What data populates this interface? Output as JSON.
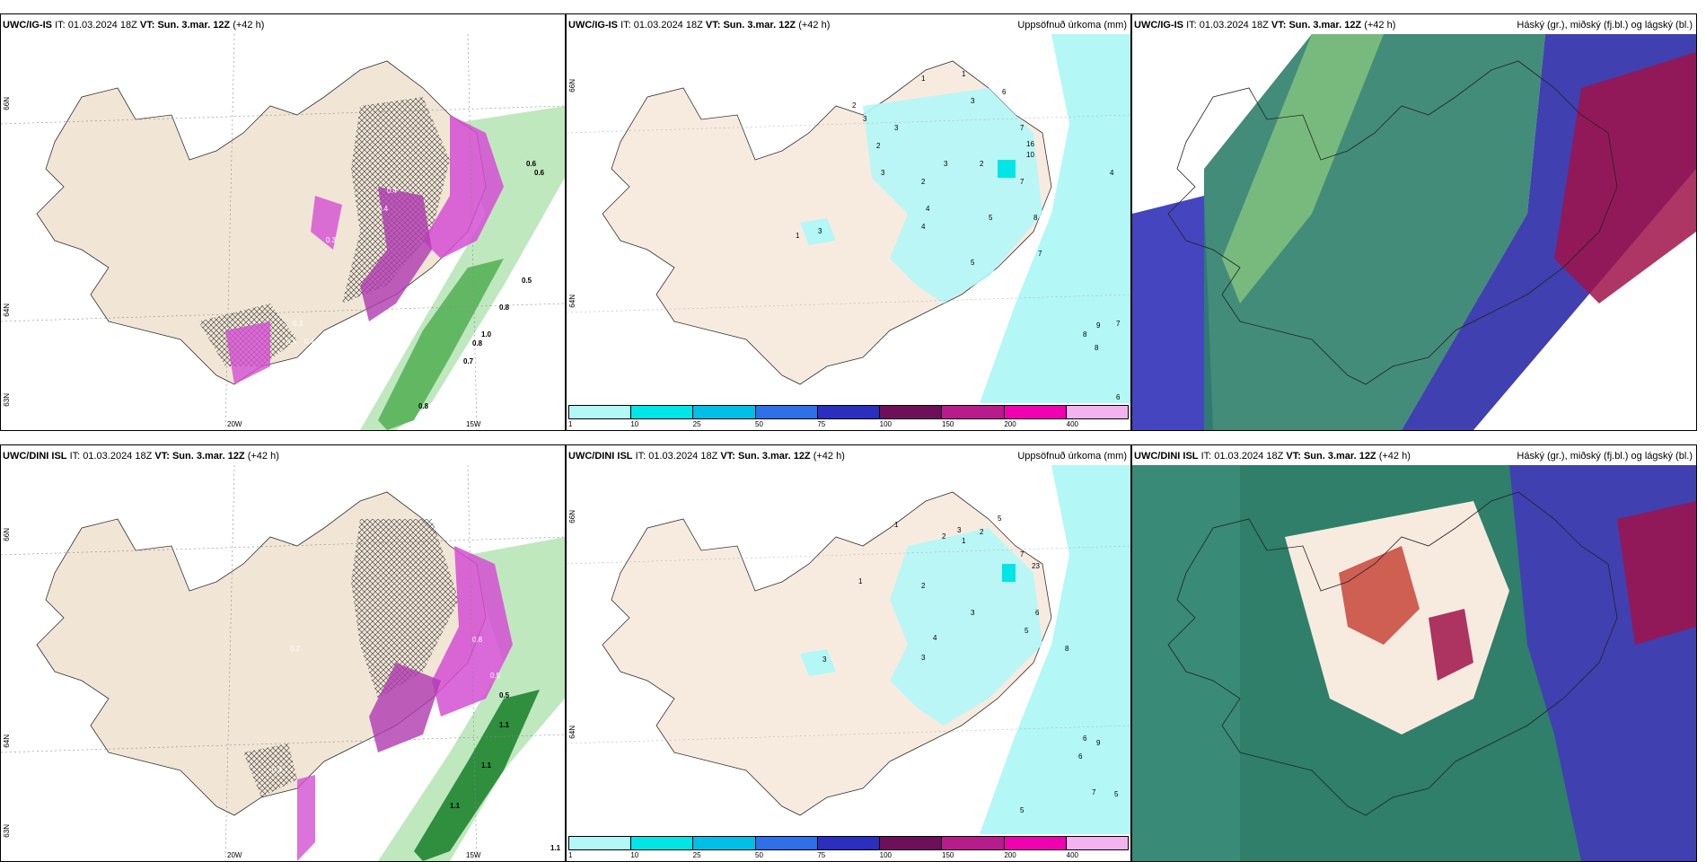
{
  "panels": [
    {
      "model": "UWC/IG-IS",
      "it_label": "IT:",
      "it_value": "01.03.2024 18Z",
      "vt_label": "VT:",
      "vt_value": "Sun. 3.mar. 12Z",
      "lead": "(+42 h)",
      "field_title": "",
      "lat_labels": [
        "66N",
        "64N",
        "63N"
      ],
      "lon_labels": [
        "20W",
        "15W"
      ],
      "values": [
        "0.6",
        "0.6",
        "0.5",
        "0.8",
        "0.7",
        "1.0",
        "0.8",
        "0.8",
        "0.4",
        "0.4",
        "0.3",
        "0.5",
        "0.4",
        "0.3"
      ]
    },
    {
      "model": "UWC/IG-IS",
      "it_label": "IT:",
      "it_value": "01.03.2024 18Z",
      "vt_label": "VT:",
      "vt_value": "Sun. 3.mar. 12Z",
      "lead": "(+42 h)",
      "field_title": "Uppsöfnuð úrkoma (mm)",
      "lat_labels": [
        "66N",
        "64N"
      ],
      "values": [
        "1",
        "1",
        "2",
        "3",
        "3",
        "2",
        "3",
        "6",
        "7",
        "7",
        "16",
        "10",
        "4",
        "4",
        "5",
        "8",
        "7",
        "8",
        "9",
        "7",
        "8",
        "6",
        "5",
        "3",
        "1",
        "2",
        "3",
        "4",
        "3",
        "2"
      ]
    },
    {
      "model": "UWC/IG-IS",
      "it_label": "IT:",
      "it_value": "01.03.2024 18Z",
      "vt_label": "VT:",
      "vt_value": "Sun. 3.mar. 12Z",
      "lead": "(+42 h)",
      "field_title": "Háský (gr.), miðský (fj.bl.) og lágský (bl.)"
    },
    {
      "model": "UWC/DINI ISL",
      "it_label": "IT:",
      "it_value": "01.03.2024 18Z",
      "vt_label": "VT:",
      "vt_value": "Sun. 3.mar. 12Z",
      "lead": "(+42 h)",
      "field_title": "",
      "lat_labels": [
        "66N",
        "64N",
        "63N"
      ],
      "lon_labels": [
        "20W",
        "15W"
      ],
      "values": [
        "0.5",
        "1.1",
        "1.1",
        "1.1",
        "1.1",
        "0.8",
        "0.5",
        "0.4",
        "0.2"
      ]
    },
    {
      "model": "UWC/DINI ISL",
      "it_label": "IT:",
      "it_value": "01.03.2024 18Z",
      "vt_label": "VT:",
      "vt_value": "Sun. 3.mar. 12Z",
      "lead": "(+42 h)",
      "field_title": "Uppsöfnuð úrkoma (mm)",
      "lat_labels": [
        "66N",
        "64N"
      ],
      "values": [
        "1",
        "1",
        "2",
        "2",
        "3",
        "5",
        "7",
        "23",
        "6",
        "5",
        "8",
        "6",
        "9",
        "6",
        "7",
        "5",
        "5",
        "3",
        "2",
        "1",
        "3",
        "4",
        "3"
      ]
    },
    {
      "model": "UWC/DINI ISL",
      "it_label": "IT:",
      "it_value": "01.03.2024 18Z",
      "vt_label": "VT:",
      "vt_value": "Sun. 3.mar. 12Z",
      "lead": "(+42 h)",
      "field_title": "Háský (gr.), miðský (fj.bl.) og lágský (bl.)"
    }
  ],
  "legend": {
    "ticks": [
      "1",
      "10",
      "25",
      "50",
      "75",
      "100",
      "150",
      "200",
      "400"
    ],
    "colors": [
      "#b3f7f7",
      "#00e5e5",
      "#00bfe6",
      "#2f6fe8",
      "#2a2fbf",
      "#6e0f5a",
      "#b81b8c",
      "#f000b0",
      "#f2b3ee"
    ]
  },
  "colors": {
    "land": "#f1e5d6",
    "precip_light": "#b3f7f7",
    "snow_magenta": "#d34fd2",
    "rain_green": "#7fd17f",
    "cloud_high": "#2f7f6a",
    "cloud_mid": "#3a3aa8",
    "cloud_low": "#a0134a"
  }
}
